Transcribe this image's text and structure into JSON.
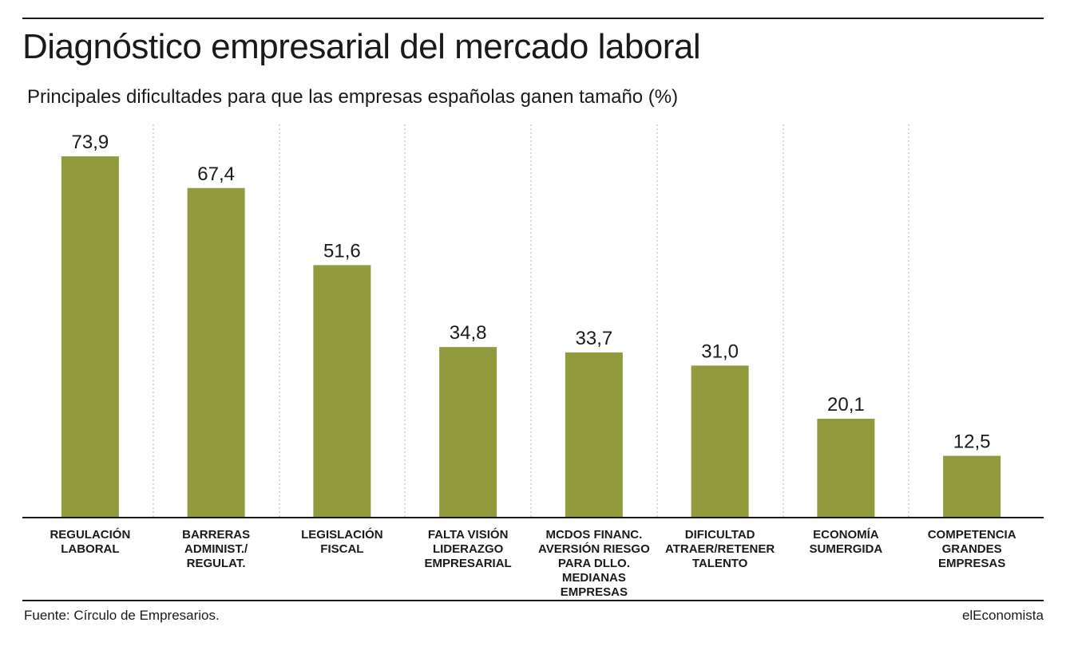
{
  "title": "Diagnóstico empresarial del mercado laboral",
  "subtitle": "Principales dificultades para que las empresas españolas ganen tamaño (%)",
  "source": "Fuente: Círculo de Empresarios.",
  "brand": "elEconomista",
  "colors": {
    "bar": "#919b3d",
    "separator": "#b5b5b5",
    "axis": "#1a1a1a"
  },
  "chart_data": {
    "type": "bar",
    "title": "Diagnóstico empresarial del mercado laboral",
    "subtitle": "Principales dificultades para que las empresas españolas ganen tamaño (%)",
    "categories": [
      [
        "REGULACIÓN",
        "LABORAL"
      ],
      [
        "BARRERAS",
        "ADMINIST./",
        "REGULAT."
      ],
      [
        "LEGISLACIÓN",
        "FISCAL"
      ],
      [
        "FALTA VISIÓN",
        "LIDERAZGO",
        "EMPRESARIAL"
      ],
      [
        "MCDOS FINANC.",
        "AVERSIÓN RIESGO",
        "PARA DLLO.",
        "MEDIANAS EMPRESAS"
      ],
      [
        "DIFICULTAD",
        "ATRAER/RETENER",
        "TALENTO"
      ],
      [
        "ECONOMÍA",
        "SUMERGIDA"
      ],
      [
        "COMPETENCIA",
        "GRANDES",
        "EMPRESAS"
      ]
    ],
    "values": [
      73.9,
      67.4,
      51.6,
      34.8,
      33.7,
      31.0,
      20.1,
      12.5
    ],
    "value_labels": [
      "73,9",
      "67,4",
      "51,6",
      "34,8",
      "33,7",
      "31,0",
      "20,1",
      "12,5"
    ],
    "ylim": [
      0,
      80
    ],
    "grid": false,
    "separators": "dotted vertical between categories"
  }
}
